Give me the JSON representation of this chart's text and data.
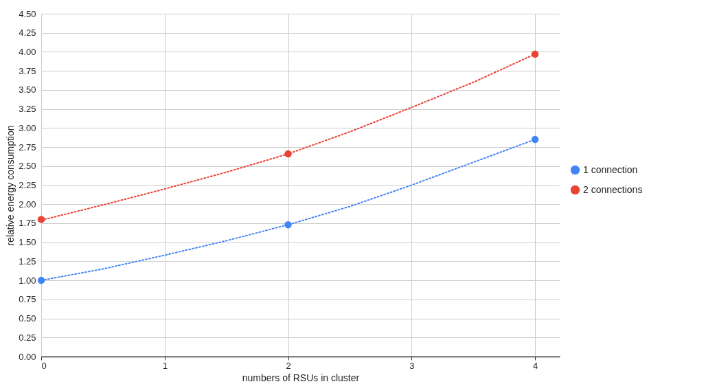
{
  "chart_data": {
    "type": "scatter",
    "xlabel": "numbers of RSUs in cluster",
    "ylabel": "relative energy consumption",
    "xlim": [
      0,
      4.2
    ],
    "xticks": [
      0,
      1,
      2,
      3,
      4
    ],
    "ylim": [
      0,
      4.5
    ],
    "yticks": [
      {
        "value": 0,
        "label": "0.00"
      },
      {
        "value": 0.25,
        "label": "0.25"
      },
      {
        "value": 0.5,
        "label": "0.50"
      },
      {
        "value": 0.75,
        "label": "0.75"
      },
      {
        "value": 1,
        "label": "1.00"
      },
      {
        "value": 1.25,
        "label": "1.25"
      },
      {
        "value": 1.5,
        "label": "1.50"
      },
      {
        "value": 1.75,
        "label": "1.75"
      },
      {
        "value": 2,
        "label": "2.00"
      },
      {
        "value": 2.25,
        "label": "2.25"
      },
      {
        "value": 2.5,
        "label": "2.50"
      },
      {
        "value": 2.75,
        "label": "2.75"
      },
      {
        "value": 3,
        "label": "3.00"
      },
      {
        "value": 3.25,
        "label": "3.25"
      },
      {
        "value": 3.5,
        "label": "3.50"
      },
      {
        "value": 3.75,
        "label": "3.75"
      },
      {
        "value": 4,
        "label": "4.00"
      },
      {
        "value": 4.25,
        "label": "4.25"
      },
      {
        "value": 4.5,
        "label": "4.50"
      }
    ],
    "grid": true,
    "legend": "right",
    "marker": "circle",
    "series": [
      {
        "type": "line",
        "marker": "none",
        "color": "#4285f4",
        "line_style": "dotted",
        "x": [
          0,
          0.5,
          1,
          1.5,
          2,
          2.5,
          3,
          3.5,
          4
        ],
        "values": [
          1.0,
          1.15,
          1.33,
          1.52,
          1.73,
          1.97,
          2.25,
          2.55,
          2.85
        ]
      },
      {
        "type": "line",
        "marker": "none",
        "color": "#ea4335",
        "line_style": "dotted",
        "x": [
          0,
          0.5,
          1,
          1.5,
          2,
          2.5,
          3,
          3.5,
          4
        ],
        "values": [
          1.79,
          1.99,
          2.2,
          2.42,
          2.66,
          2.95,
          3.27,
          3.6,
          3.97
        ]
      },
      {
        "name": "1 connection",
        "color": "#4285f4",
        "x": [
          0,
          2,
          4
        ],
        "values": [
          1.0,
          1.73,
          2.85
        ]
      },
      {
        "name": "2 connections",
        "color": "#ea4335",
        "x": [
          0,
          2,
          4
        ],
        "values": [
          1.8,
          2.66,
          3.97
        ]
      }
    ]
  }
}
